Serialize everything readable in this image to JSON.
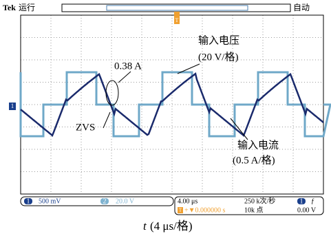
{
  "header": {
    "brand": "Tek",
    "status": "运行",
    "mode": "自动"
  },
  "markers": {
    "channel": "1",
    "trigger": "T"
  },
  "annotations": {
    "voltage_label": "输入电压",
    "voltage_scale": "(20 V/格)",
    "peak": "0.38 A",
    "zvs": "ZVS",
    "current_label": "输入电流",
    "current_scale": "(0.5 A/格)"
  },
  "status_bar": {
    "ch1": "1",
    "ch1_scale": "500 mV",
    "ch2": "2",
    "ch2_scale": "20.0 V",
    "timebase": "4.00 μs",
    "trigger_icon": "T",
    "trigger_pos": "+▼0.000000 s",
    "sample_rate": "250 k次/秒",
    "record": "10k 点",
    "trig_ch": "1",
    "trig_slope": "ƒ",
    "trig_level": "0.00 V"
  },
  "caption": {
    "symbol": "t",
    "unit": "(4 μs/格)"
  }
}
